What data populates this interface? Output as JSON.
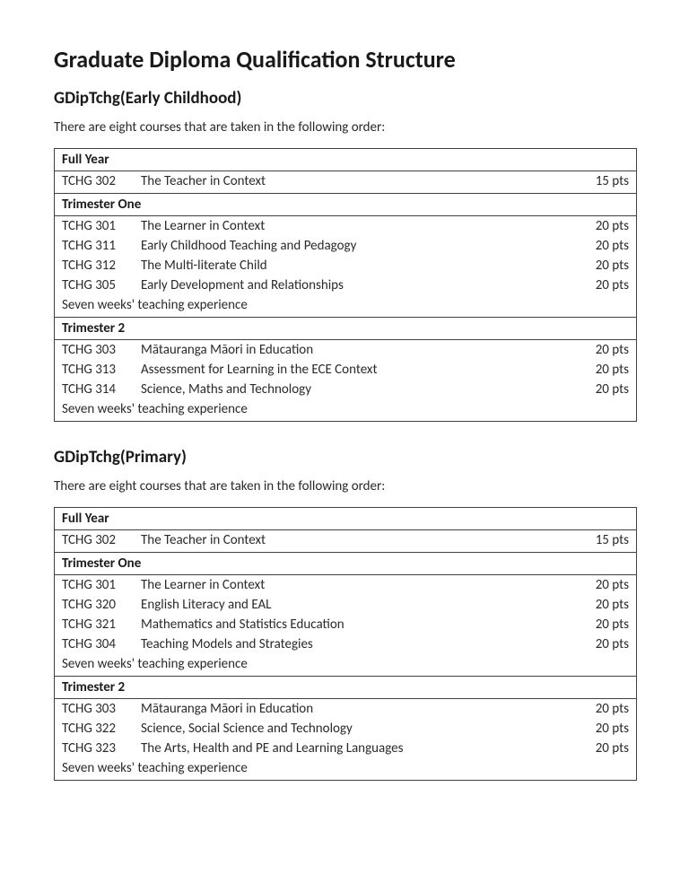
{
  "page_title": "Graduate Diploma Qualification Structure",
  "programs": [
    {
      "heading": "GDipTchg(Early Childhood)",
      "intro": "There are eight courses that are taken in the following order:",
      "sections": [
        {
          "label": "Full Year",
          "courses": [
            {
              "code": "TCHG 302",
              "title": "The Teacher in Context",
              "pts": "15 pts"
            }
          ],
          "note": null
        },
        {
          "label": "Trimester One",
          "courses": [
            {
              "code": "TCHG 301",
              "title": "The Learner in Context",
              "pts": "20 pts"
            },
            {
              "code": "TCHG 311",
              "title": "Early Childhood Teaching and Pedagogy",
              "pts": "20 pts"
            },
            {
              "code": "TCHG 312",
              "title": "The Multi-literate Child",
              "pts": "20 pts"
            },
            {
              "code": "TCHG 305",
              "title": "Early Development and Relationships",
              "pts": "20 pts"
            }
          ],
          "note": "Seven weeks' teaching experience"
        },
        {
          "label": "Trimester 2",
          "courses": [
            {
              "code": "TCHG 303",
              "title": "Mātauranga Māori in Education",
              "pts": "20 pts"
            },
            {
              "code": "TCHG 313",
              "title": "Assessment for Learning in the ECE Context",
              "pts": "20 pts"
            },
            {
              "code": "TCHG 314",
              "title": "Science, Maths and Technology",
              "pts": "20 pts"
            }
          ],
          "note": "Seven weeks' teaching experience"
        }
      ]
    },
    {
      "heading": "GDipTchg(Primary)",
      "intro": "There are eight courses that are taken in the following order:",
      "sections": [
        {
          "label": "Full Year",
          "courses": [
            {
              "code": "TCHG 302",
              "title": "The Teacher in Context",
              "pts": "15 pts"
            }
          ],
          "note": null
        },
        {
          "label": "Trimester One",
          "courses": [
            {
              "code": "TCHG 301",
              "title": "The Learner in Context",
              "pts": "20 pts"
            },
            {
              "code": "TCHG 320",
              "title": "English Literacy and EAL",
              "pts": "20 pts"
            },
            {
              "code": "TCHG 321",
              "title": "Mathematics and Statistics Education",
              "pts": "20 pts"
            },
            {
              "code": "TCHG 304",
              "title": "Teaching Models and Strategies",
              "pts": "20 pts"
            }
          ],
          "note": "Seven weeks' teaching experience"
        },
        {
          "label": "Trimester 2",
          "courses": [
            {
              "code": "TCHG 303",
              "title": "Mātauranga Māori in Education",
              "pts": "20 pts"
            },
            {
              "code": "TCHG 322",
              "title": "Science, Social Science and Technology",
              "pts": "20 pts"
            },
            {
              "code": "TCHG 323",
              "title": "The Arts, Health and PE and Learning Languages",
              "pts": "20 pts"
            }
          ],
          "note": "Seven weeks' teaching experience"
        }
      ]
    }
  ]
}
